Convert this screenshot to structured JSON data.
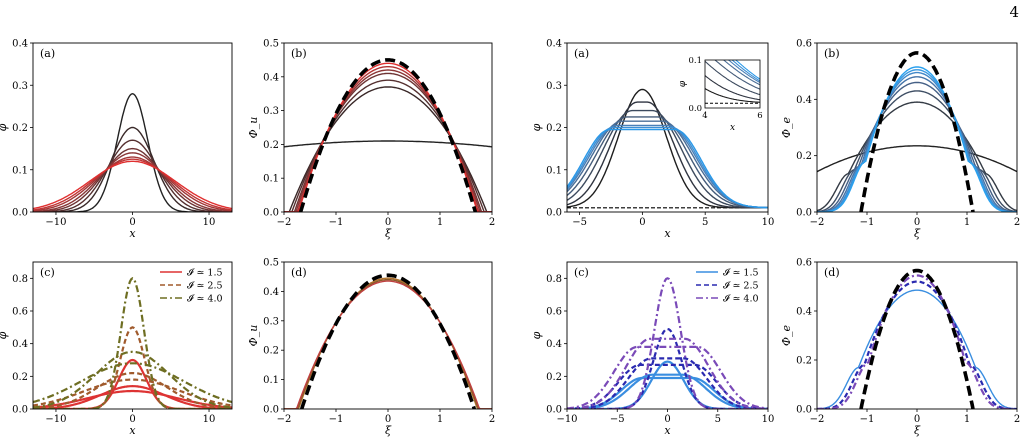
{
  "page": {
    "page_number": "4"
  },
  "chart_data": [
    {
      "id": "L-a",
      "type": "line",
      "panel_label": "(a)",
      "xlabel": "x",
      "ylabel": "φ",
      "xlim": [
        -13,
        13
      ],
      "ylim": [
        0,
        0.4
      ],
      "xticks": [
        -10,
        0,
        10
      ],
      "yticks": [
        0.0,
        0.1,
        0.2,
        0.3,
        0.4
      ],
      "curve_kind": "gauss",
      "series": [
        {
          "color": "#222222",
          "values": {
            "peak": 0.28,
            "width": 2.0
          }
        },
        {
          "color": "#3a2a2a",
          "values": {
            "peak": 0.2,
            "width": 2.8
          }
        },
        {
          "color": "#553030",
          "values": {
            "peak": 0.17,
            "width": 3.3
          }
        },
        {
          "color": "#6e3434",
          "values": {
            "peak": 0.15,
            "width": 3.8
          }
        },
        {
          "color": "#883636",
          "values": {
            "peak": 0.14,
            "width": 4.2
          }
        },
        {
          "color": "#a13636",
          "values": {
            "peak": 0.13,
            "width": 4.7
          }
        },
        {
          "color": "#c03434",
          "values": {
            "peak": 0.125,
            "width": 5.1
          }
        },
        {
          "color": "#e03030",
          "values": {
            "peak": 0.12,
            "width": 5.6
          }
        }
      ]
    },
    {
      "id": "L-b",
      "type": "line",
      "panel_label": "(b)",
      "xlabel": "ξ",
      "ylabel": "Φ_u",
      "xlim": [
        -2,
        2
      ],
      "ylim": [
        0,
        0.5
      ],
      "xticks": [
        -2,
        -1,
        0,
        1,
        2
      ],
      "yticks": [
        0.0,
        0.1,
        0.2,
        0.3,
        0.4,
        0.5
      ],
      "curve_kind": "dome",
      "dashed_ref": {
        "peak": 0.45,
        "halfwidth": 1.68
      },
      "series": [
        {
          "color": "#222222",
          "values": {
            "peak": 0.21,
            "halfwidth": 7.0,
            "exp": 2,
            "kind": "parab"
          }
        },
        {
          "color": "#3a2828",
          "values": {
            "peak": 0.37,
            "halfwidth": 1.9
          }
        },
        {
          "color": "#553030",
          "values": {
            "peak": 0.39,
            "halfwidth": 1.85
          }
        },
        {
          "color": "#6e3434",
          "values": {
            "peak": 0.41,
            "halfwidth": 1.8
          }
        },
        {
          "color": "#8b3535",
          "values": {
            "peak": 0.42,
            "halfwidth": 1.77
          }
        },
        {
          "color": "#b03434",
          "values": {
            "peak": 0.43,
            "halfwidth": 1.74
          }
        },
        {
          "color": "#e03030",
          "values": {
            "peak": 0.44,
            "halfwidth": 1.72
          }
        }
      ]
    },
    {
      "id": "L-c",
      "type": "line",
      "panel_label": "(c)",
      "xlabel": "x",
      "ylabel": "φ",
      "xlim": [
        -13,
        13
      ],
      "ylim": [
        0,
        0.9
      ],
      "xticks": [
        -10,
        0,
        10
      ],
      "yticks": [
        0.0,
        0.2,
        0.4,
        0.6,
        0.8
      ],
      "curve_kind": "gauss",
      "legend": {
        "position": "upper-right",
        "entries": [
          {
            "label": "𝓘 ≃ 1.5",
            "color": "#dd3333",
            "dash": "solid"
          },
          {
            "label": "𝓘 ≃ 2.5",
            "color": "#a05a2c",
            "dash": "dashed"
          },
          {
            "label": "𝓘 ≃ 4.0",
            "color": "#6e6e22",
            "dash": "dashdot"
          }
        ]
      },
      "series": [
        {
          "color": "#dd3333",
          "dash": "solid",
          "values": {
            "peak": 0.3,
            "width": 1.8
          }
        },
        {
          "color": "#dd3333",
          "dash": "solid",
          "values": {
            "peak": 0.14,
            "width": 4.2
          }
        },
        {
          "color": "#dd3333",
          "dash": "solid",
          "values": {
            "peak": 0.11,
            "width": 5.8
          }
        },
        {
          "color": "#a05a2c",
          "dash": "dashed",
          "values": {
            "peak": 0.5,
            "width": 1.6
          }
        },
        {
          "color": "#a05a2c",
          "dash": "dashed",
          "values": {
            "peak": 0.22,
            "width": 4.5
          }
        },
        {
          "color": "#a05a2c",
          "dash": "dashed",
          "values": {
            "peak": 0.18,
            "width": 6.3
          }
        },
        {
          "color": "#6e6e22",
          "dash": "dashdot",
          "values": {
            "peak": 0.8,
            "width": 1.5
          }
        },
        {
          "color": "#6e6e22",
          "dash": "dashdot",
          "values": {
            "peak": 0.35,
            "width": 4.8
          }
        },
        {
          "color": "#6e6e22",
          "dash": "dashdot",
          "values": {
            "peak": 0.28,
            "width": 6.7
          }
        }
      ]
    },
    {
      "id": "L-d",
      "type": "line",
      "panel_label": "(d)",
      "xlabel": "ξ",
      "ylabel": "Φ_u",
      "xlim": [
        -2,
        2
      ],
      "ylim": [
        0,
        0.5
      ],
      "xticks": [
        -2,
        -1,
        0,
        1,
        2
      ],
      "yticks": [
        0.0,
        0.1,
        0.2,
        0.3,
        0.4,
        0.5
      ],
      "curve_kind": "dome",
      "dashed_ref": {
        "peak": 0.455,
        "halfwidth": 1.66
      },
      "series": [
        {
          "color": "#b0722a",
          "values": {
            "peak": 0.445,
            "halfwidth": 1.72
          }
        },
        {
          "color": "#8a5a2a",
          "values": {
            "peak": 0.44,
            "halfwidth": 1.74
          }
        },
        {
          "color": "#c04040",
          "values": {
            "peak": 0.435,
            "halfwidth": 1.76
          }
        }
      ]
    },
    {
      "id": "R-a",
      "type": "line",
      "panel_label": "(a)",
      "xlabel": "x",
      "ylabel": "φ",
      "xlim": [
        -6,
        10
      ],
      "ylim": [
        0,
        0.4
      ],
      "xticks": [
        -5,
        0,
        5,
        10
      ],
      "yticks": [
        0.0,
        0.1,
        0.2,
        0.3,
        0.4
      ],
      "curve_kind": "gauss",
      "baseline": 0.01,
      "inset": {
        "xlabel": "x",
        "ylabel": "φ",
        "xlim": [
          4,
          6
        ],
        "ylim": [
          0,
          0.1
        ],
        "xticks": [
          4,
          6
        ],
        "yticks": [
          0.0,
          0.1
        ]
      },
      "series": [
        {
          "color": "#1e1e1e",
          "values": {
            "peak": 0.29,
            "width": 1.9
          }
        },
        {
          "color": "#2f3440",
          "values": {
            "peak": 0.26,
            "width": 2.1,
            "flat": 0.4
          }
        },
        {
          "color": "#3c4a5e",
          "values": {
            "peak": 0.24,
            "width": 2.3,
            "flat": 0.8
          }
        },
        {
          "color": "#455c7a",
          "values": {
            "peak": 0.225,
            "width": 2.4,
            "flat": 1.2
          }
        },
        {
          "color": "#4a6e98",
          "values": {
            "peak": 0.215,
            "width": 2.4,
            "flat": 1.6
          }
        },
        {
          "color": "#4a80b8",
          "values": {
            "peak": 0.205,
            "width": 2.3,
            "flat": 2.0
          }
        },
        {
          "color": "#3c90d6",
          "values": {
            "peak": 0.2,
            "width": 2.2,
            "flat": 2.3
          }
        },
        {
          "color": "#2a98e8",
          "values": {
            "peak": 0.195,
            "width": 2.1,
            "flat": 2.6
          }
        }
      ]
    },
    {
      "id": "R-b",
      "type": "line",
      "panel_label": "(b)",
      "xlabel": "ξ",
      "ylabel": "Φ_e",
      "xlim": [
        -2,
        2
      ],
      "ylim": [
        0,
        0.6
      ],
      "xticks": [
        -2,
        -1,
        0,
        1,
        2
      ],
      "yticks": [
        0.0,
        0.2,
        0.4,
        0.6
      ],
      "curve_kind": "dome",
      "dashed_ref": {
        "peak": 0.565,
        "halfwidth": 1.12
      },
      "series": [
        {
          "color": "#222222",
          "values": {
            "peak": 0.235,
            "halfwidth": 3.2,
            "kind": "parab"
          }
        },
        {
          "color": "#333a44",
          "values": {
            "peak": 0.39,
            "halfwidth": 1.7,
            "soft": 1
          }
        },
        {
          "color": "#3e4e64",
          "values": {
            "peak": 0.43,
            "halfwidth": 1.55,
            "soft": 1
          }
        },
        {
          "color": "#456086",
          "values": {
            "peak": 0.46,
            "halfwidth": 1.45,
            "soft": 1
          }
        },
        {
          "color": "#4674a8",
          "values": {
            "peak": 0.48,
            "halfwidth": 1.38,
            "soft": 1
          }
        },
        {
          "color": "#4288c8",
          "values": {
            "peak": 0.495,
            "halfwidth": 1.33,
            "soft": 1
          }
        },
        {
          "color": "#3898e0",
          "values": {
            "peak": 0.505,
            "halfwidth": 1.3,
            "soft": 1
          }
        },
        {
          "color": "#2aa0ee",
          "values": {
            "peak": 0.515,
            "halfwidth": 1.27,
            "soft": 1
          }
        }
      ]
    },
    {
      "id": "R-c",
      "type": "line",
      "panel_label": "(c)",
      "xlabel": "x",
      "ylabel": "φ",
      "xlim": [
        -10,
        10
      ],
      "ylim": [
        0,
        0.9
      ],
      "xticks": [
        -10,
        -5,
        0,
        5,
        10
      ],
      "yticks": [
        0.0,
        0.2,
        0.4,
        0.6,
        0.8
      ],
      "curve_kind": "gauss",
      "legend": {
        "position": "upper-right",
        "entries": [
          {
            "label": "𝓘 ≃ 1.5",
            "color": "#3a8ee0",
            "dash": "solid"
          },
          {
            "label": "𝓘 ≃ 2.5",
            "color": "#2a2ab0",
            "dash": "dashed"
          },
          {
            "label": "𝓘 ≃ 4.0",
            "color": "#7a4ab8",
            "dash": "dashdot"
          }
        ]
      },
      "series": [
        {
          "color": "#3a8ee0",
          "dash": "solid",
          "values": {
            "peak": 0.29,
            "width": 1.6
          }
        },
        {
          "color": "#3a8ee0",
          "dash": "solid",
          "values": {
            "peak": 0.21,
            "width": 2.3,
            "flat": 1.5
          }
        },
        {
          "color": "#3a8ee0",
          "dash": "solid",
          "values": {
            "peak": 0.19,
            "width": 2.1,
            "flat": 2.5
          }
        },
        {
          "color": "#2a2ab0",
          "dash": "dashed",
          "values": {
            "peak": 0.49,
            "width": 1.4
          }
        },
        {
          "color": "#2a2ab0",
          "dash": "dashed",
          "values": {
            "peak": 0.31,
            "width": 2.3,
            "flat": 1.6
          }
        },
        {
          "color": "#2a2ab0",
          "dash": "dashed",
          "values": {
            "peak": 0.27,
            "width": 2.2,
            "flat": 2.7
          }
        },
        {
          "color": "#7a4ab8",
          "dash": "dashdot",
          "values": {
            "peak": 0.8,
            "width": 1.3
          }
        },
        {
          "color": "#7a4ab8",
          "dash": "dashdot",
          "values": {
            "peak": 0.43,
            "width": 2.4,
            "flat": 1.7
          }
        },
        {
          "color": "#7a4ab8",
          "dash": "dashdot",
          "values": {
            "peak": 0.38,
            "width": 2.3,
            "flat": 3.0
          }
        }
      ]
    },
    {
      "id": "R-d",
      "type": "line",
      "panel_label": "(d)",
      "xlabel": "ξ",
      "ylabel": "Φ_e",
      "xlim": [
        -2,
        2
      ],
      "ylim": [
        0,
        0.6
      ],
      "xticks": [
        -2,
        -1,
        0,
        1,
        2
      ],
      "yticks": [
        0.0,
        0.2,
        0.4,
        0.6
      ],
      "curve_kind": "dome",
      "dashed_ref": {
        "peak": 0.565,
        "halfwidth": 1.12
      },
      "series": [
        {
          "color": "#3a8ee0",
          "values": {
            "peak": 0.485,
            "halfwidth": 1.45,
            "soft": 1
          }
        },
        {
          "color": "#2a2ab0",
          "dash": "dashed",
          "values": {
            "peak": 0.52,
            "halfwidth": 1.3,
            "soft": 1
          }
        },
        {
          "color": "#7a4ab8",
          "dash": "dashdot",
          "values": {
            "peak": 0.545,
            "halfwidth": 1.2,
            "soft": 1
          }
        }
      ]
    }
  ]
}
